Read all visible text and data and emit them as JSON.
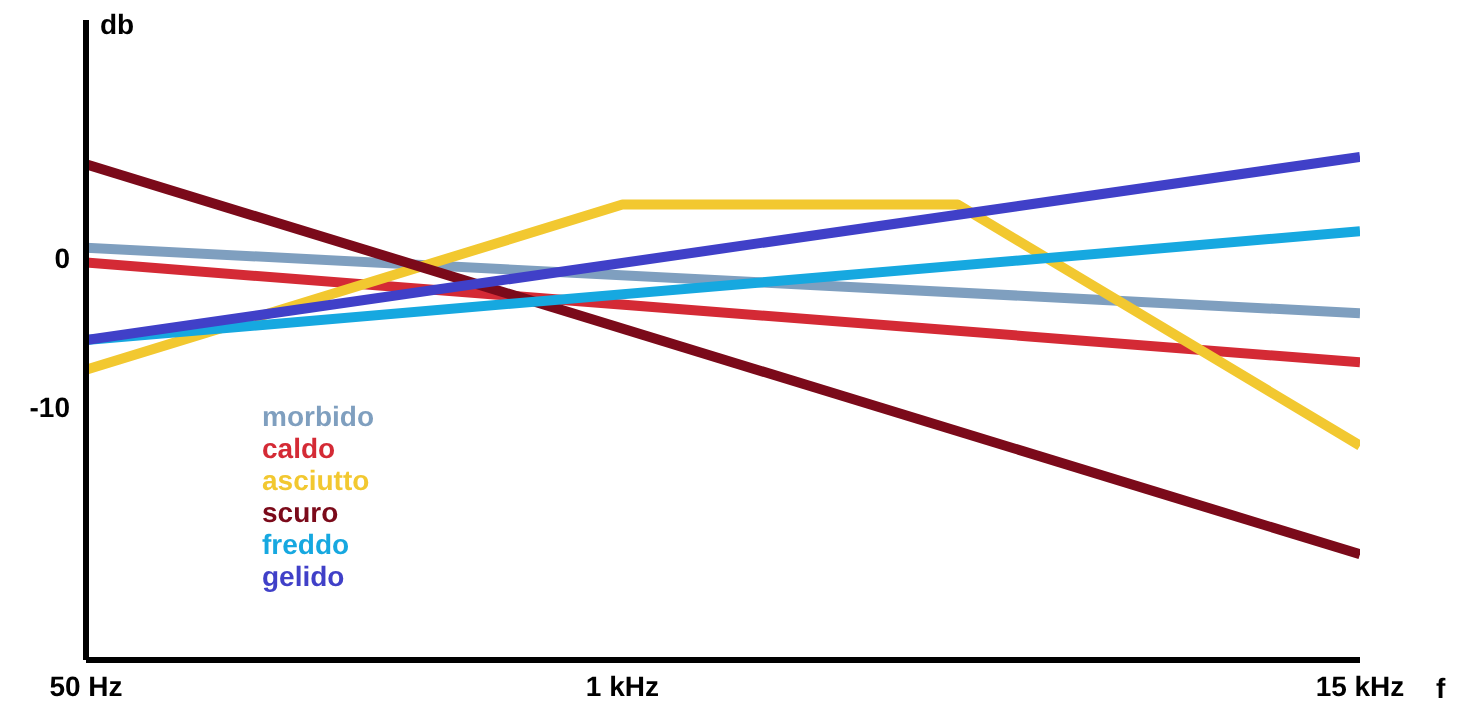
{
  "chart_data": {
    "type": "line",
    "xlabel": "f",
    "ylabel": "db",
    "categories": [
      "50 Hz",
      null,
      null,
      null,
      null,
      null,
      null,
      null,
      "1 kHz",
      null,
      null,
      null,
      null,
      null,
      null,
      null,
      null,
      null,
      null,
      "15 kHz"
    ],
    "ylim": [
      -27,
      16
    ],
    "yticks": [
      0,
      -10
    ],
    "series": [
      {
        "name": "morbido",
        "color": "#7f9fbf",
        "values": [
          0.7,
          null,
          null,
          null,
          null,
          null,
          null,
          null,
          null,
          null,
          null,
          null,
          null,
          null,
          null,
          null,
          null,
          null,
          null,
          -3.7
        ]
      },
      {
        "name": "caldo",
        "color": "#d42a35",
        "values": [
          -0.3,
          null,
          null,
          null,
          null,
          null,
          null,
          null,
          null,
          null,
          null,
          null,
          null,
          null,
          null,
          null,
          null,
          null,
          null,
          -7
        ]
      },
      {
        "name": "asciutto",
        "color": "#f2c830",
        "values": [
          -7.5,
          null,
          null,
          null,
          null,
          null,
          null,
          null,
          3.6,
          null,
          null,
          null,
          null,
          3.6,
          null,
          null,
          null,
          null,
          null,
          -12.6
        ]
      },
      {
        "name": "scuro",
        "color": "#7b0a1a",
        "values": [
          6.3,
          null,
          null,
          null,
          null,
          null,
          null,
          null,
          null,
          null,
          null,
          null,
          null,
          null,
          null,
          null,
          null,
          null,
          null,
          -19.9
        ]
      },
      {
        "name": "freddo",
        "color": "#16a8e0",
        "values": [
          -5.5,
          null,
          null,
          null,
          null,
          null,
          null,
          null,
          null,
          null,
          null,
          null,
          null,
          null,
          null,
          null,
          null,
          null,
          null,
          1.8
        ]
      },
      {
        "name": "gelido",
        "color": "#4040c8",
        "values": [
          -5.5,
          null,
          null,
          null,
          null,
          null,
          null,
          null,
          null,
          null,
          null,
          null,
          null,
          null,
          null,
          null,
          null,
          null,
          null,
          6.8
        ]
      }
    ],
    "grid": false,
    "legend": "bottom left",
    "marker": "none",
    "line_style": "solid"
  }
}
